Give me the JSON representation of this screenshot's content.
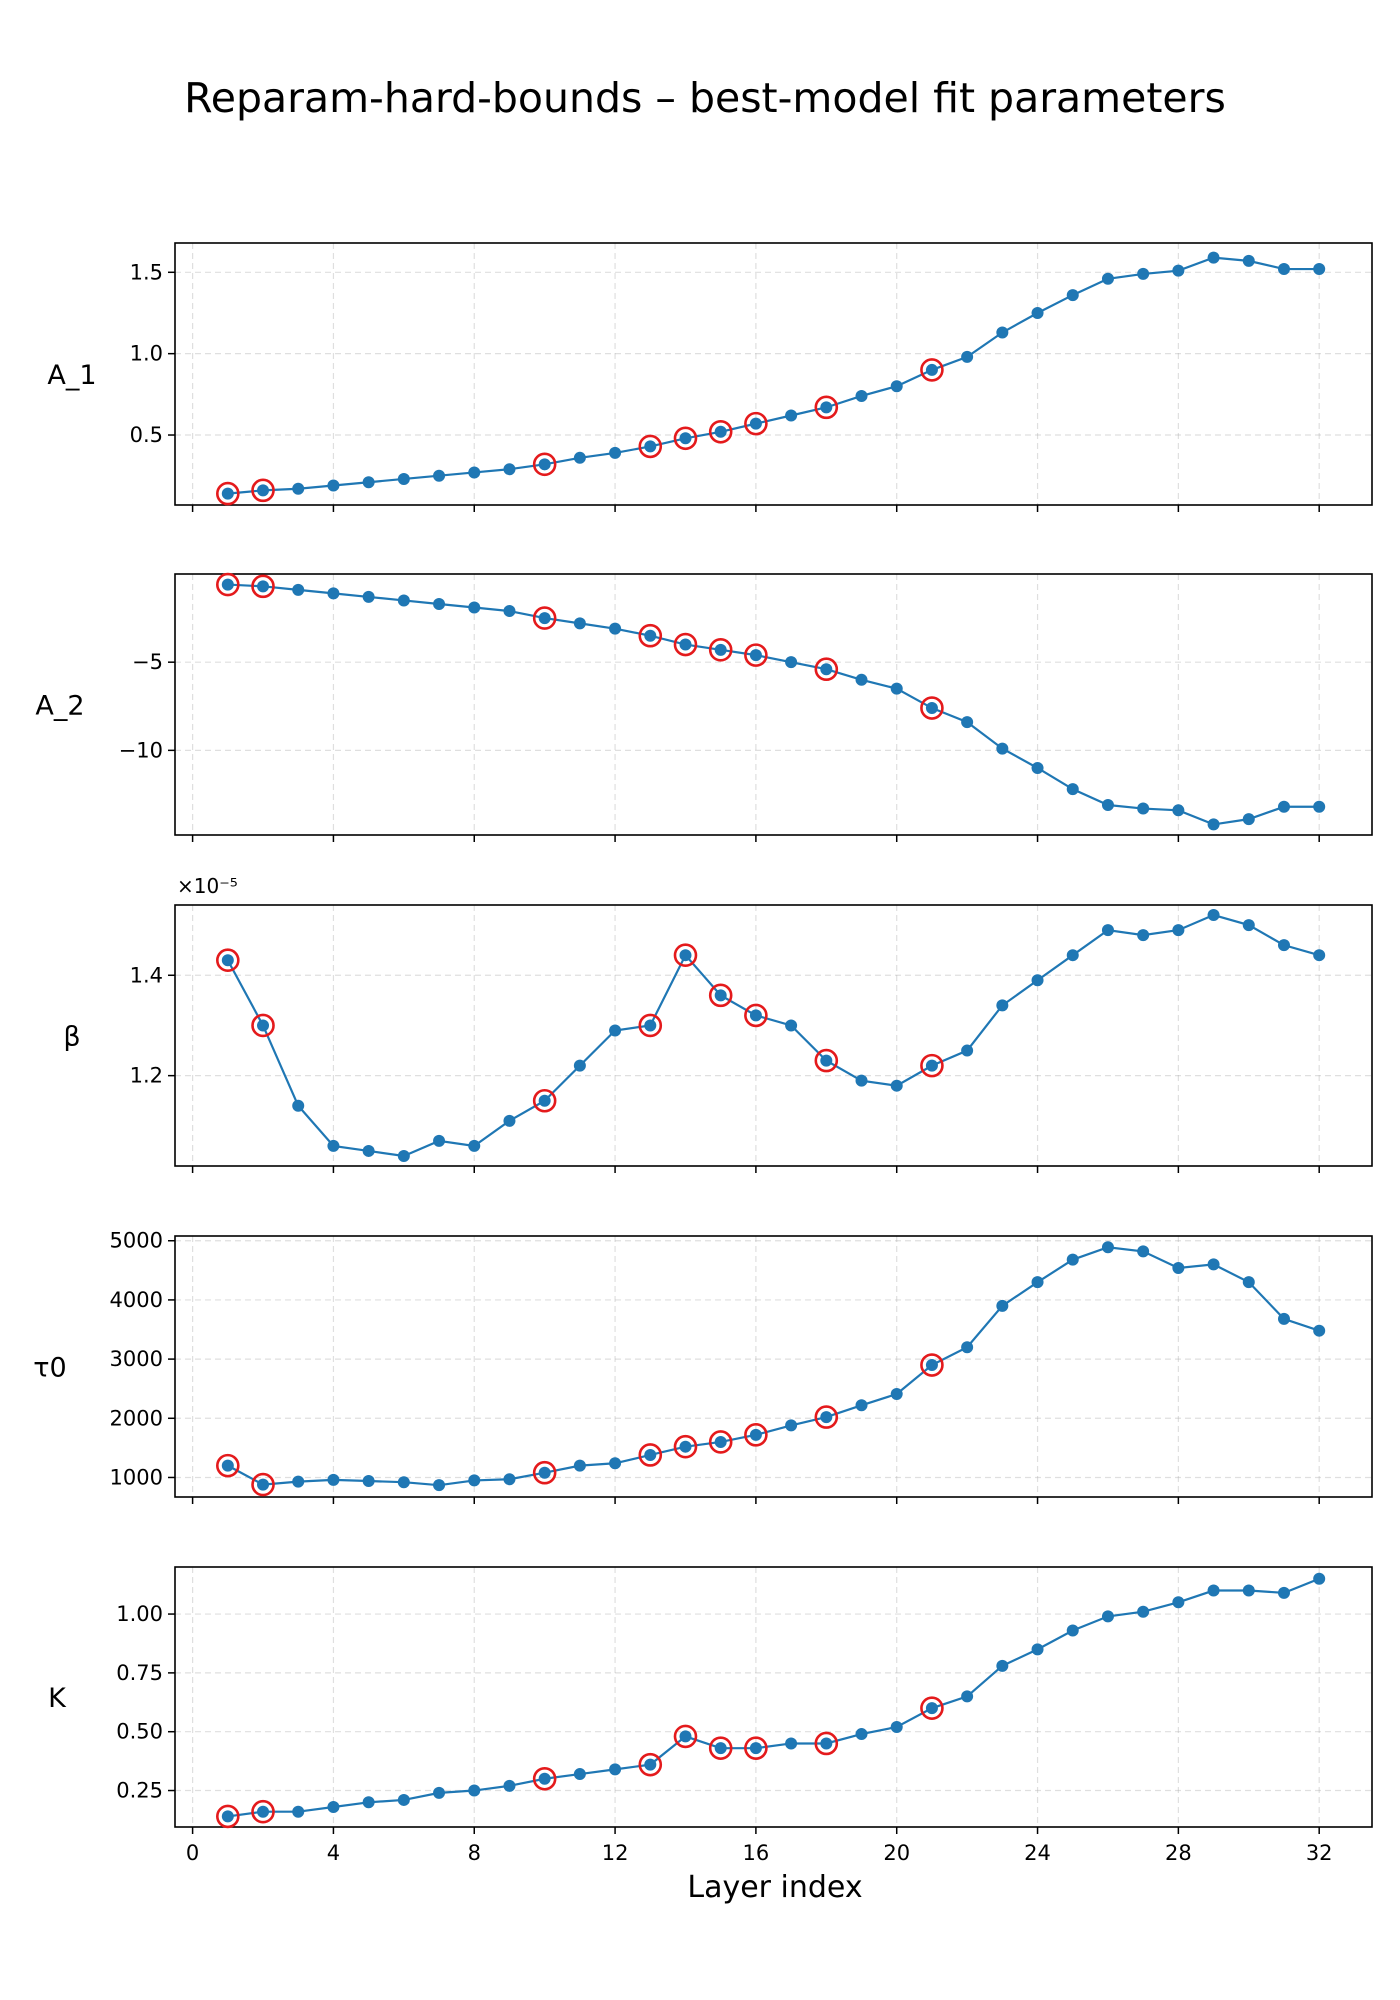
{
  "chart_data": {
    "type": "line",
    "title": "Reparam-hard-bounds – best-model fit parameters",
    "xlabel": "Layer index",
    "xlim": [
      -0.5,
      33.5
    ],
    "xticks": [
      0,
      4,
      8,
      12,
      16,
      20,
      24,
      28,
      32
    ],
    "grid": true,
    "shared_x": true,
    "x": [
      1,
      2,
      3,
      4,
      5,
      6,
      7,
      8,
      9,
      10,
      11,
      12,
      13,
      14,
      15,
      16,
      17,
      18,
      19,
      20,
      21,
      22,
      23,
      24,
      25,
      26,
      27,
      28,
      29,
      30,
      31,
      32
    ],
    "highlighted_x": [
      1,
      2,
      10,
      13,
      14,
      15,
      16,
      18,
      21
    ],
    "colors": {
      "line": "#1f77b4",
      "marker": "#1f77b4",
      "highlight_ring": "#e41a1c"
    },
    "panels": [
      {
        "ylabel": "A_1",
        "ylim": [
          0.07,
          1.68
        ],
        "yticks": [
          0.5,
          1.0,
          1.5
        ],
        "ytick_labels": [
          "0.5",
          "1.0",
          "1.5"
        ],
        "values": [
          0.14,
          0.16,
          0.17,
          0.19,
          0.21,
          0.23,
          0.25,
          0.27,
          0.29,
          0.32,
          0.36,
          0.39,
          0.43,
          0.48,
          0.52,
          0.57,
          0.62,
          0.67,
          0.74,
          0.8,
          0.9,
          0.98,
          1.13,
          1.25,
          1.36,
          1.46,
          1.49,
          1.51,
          1.59,
          1.57,
          1.52,
          1.52
        ]
      },
      {
        "ylabel": "A_2",
        "ylim": [
          -14.8,
          0.0
        ],
        "yticks": [
          -5,
          -10
        ],
        "ytick_labels": [
          "−5",
          "−10"
        ],
        "values": [
          -0.6,
          -0.7,
          -0.9,
          -1.1,
          -1.3,
          -1.5,
          -1.7,
          -1.9,
          -2.1,
          -2.5,
          -2.8,
          -3.1,
          -3.5,
          -4.0,
          -4.3,
          -4.6,
          -5.0,
          -5.4,
          -6.0,
          -6.5,
          -7.6,
          -8.4,
          -9.9,
          -11.0,
          -12.2,
          -13.1,
          -13.3,
          -13.4,
          -14.2,
          -13.9,
          -13.2,
          -13.2
        ]
      },
      {
        "ylabel": "β",
        "offset_label": "×10⁻⁵",
        "ylim": [
          1.02,
          1.54
        ],
        "yticks": [
          1.2,
          1.4
        ],
        "ytick_labels": [
          "1.2",
          "1.4"
        ],
        "values": [
          1.43,
          1.3,
          1.14,
          1.06,
          1.05,
          1.04,
          1.07,
          1.06,
          1.11,
          1.15,
          1.22,
          1.29,
          1.3,
          1.44,
          1.36,
          1.32,
          1.3,
          1.23,
          1.19,
          1.18,
          1.22,
          1.25,
          1.34,
          1.39,
          1.44,
          1.49,
          1.48,
          1.49,
          1.52,
          1.5,
          1.46,
          1.44
        ]
      },
      {
        "ylabel": "τ0",
        "ylim": [
          670,
          5080
        ],
        "yticks": [
          1000,
          2000,
          3000,
          4000,
          5000
        ],
        "ytick_labels": [
          "1000",
          "2000",
          "3000",
          "4000",
          "5000"
        ],
        "values": [
          1200,
          880,
          930,
          960,
          940,
          920,
          870,
          950,
          970,
          1080,
          1200,
          1240,
          1380,
          1520,
          1600,
          1720,
          1880,
          2020,
          2220,
          2410,
          2900,
          3200,
          3900,
          4300,
          4680,
          4890,
          4820,
          4540,
          4600,
          4300,
          3680,
          3480
        ]
      },
      {
        "ylabel": "K",
        "ylim": [
          0.095,
          1.2
        ],
        "yticks": [
          0.25,
          0.5,
          0.75,
          1.0
        ],
        "ytick_labels": [
          "0.25",
          "0.50",
          "0.75",
          "1.00"
        ],
        "values": [
          0.14,
          0.16,
          0.16,
          0.18,
          0.2,
          0.21,
          0.24,
          0.25,
          0.27,
          0.3,
          0.32,
          0.34,
          0.36,
          0.48,
          0.43,
          0.43,
          0.45,
          0.45,
          0.49,
          0.52,
          0.6,
          0.65,
          0.78,
          0.85,
          0.93,
          0.99,
          1.01,
          1.05,
          1.1,
          1.1,
          1.09,
          1.15
        ]
      }
    ]
  }
}
